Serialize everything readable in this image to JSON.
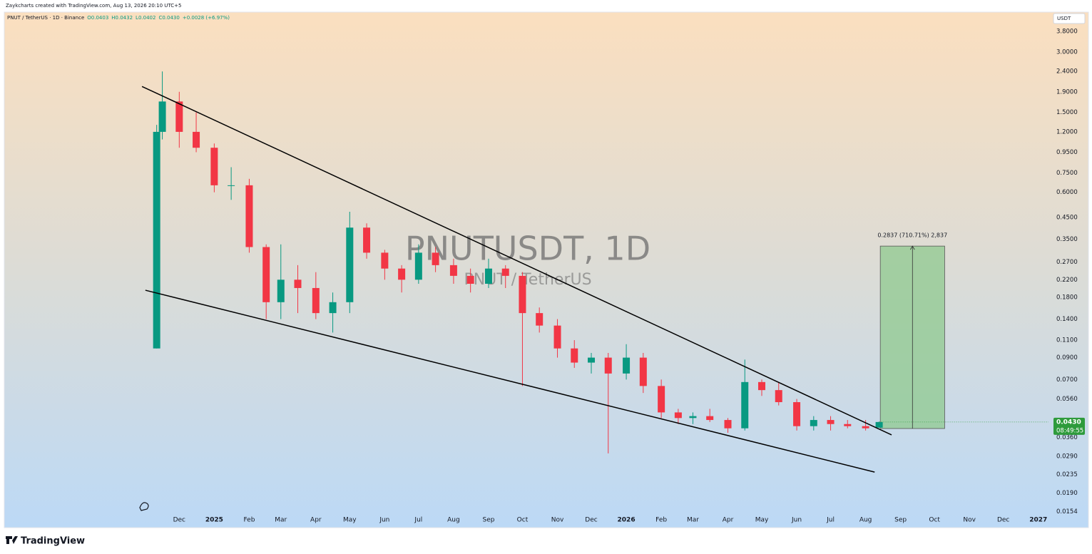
{
  "header": {
    "credit": "Zaykcharts created with TradingView.com, Aug 13, 2026 20:10 UTC+5",
    "symbol": "PNUT / TetherUS · 1D · Binance",
    "o": "O0.0403",
    "h": "H0.0432",
    "l": "L0.0402",
    "c": "C0.0430",
    "change": "+0.0028 (+6.97%)"
  },
  "watermark": {
    "title": "PNUTUSDT, 1D",
    "subtitle": "PNUT / TetherUS"
  },
  "currency": "USDT",
  "brand": "TradingView",
  "chart_data": {
    "type": "candlestick",
    "x": [
      "2024-11-11",
      "2024-11-16",
      "2024-12-01",
      "2024-12-16",
      "2025-01-01",
      "2025-01-16",
      "2025-02-01",
      "2025-02-16",
      "2025-03-01",
      "2025-03-16",
      "2025-04-01",
      "2025-04-16",
      "2025-05-01",
      "2025-05-16",
      "2025-06-01",
      "2025-06-16",
      "2025-07-01",
      "2025-07-16",
      "2025-08-01",
      "2025-08-16",
      "2025-09-01",
      "2025-09-16",
      "2025-10-01",
      "2025-10-16",
      "2025-11-01",
      "2025-11-16",
      "2025-12-01",
      "2025-12-16",
      "2026-01-01",
      "2026-01-16",
      "2026-02-01",
      "2026-02-16",
      "2026-03-01",
      "2026-03-16",
      "2026-04-01",
      "2026-04-16",
      "2026-05-01",
      "2026-05-16",
      "2026-06-01",
      "2026-06-16",
      "2026-07-01",
      "2026-07-16",
      "2026-08-01",
      "2026-08-13"
    ],
    "open": [
      0.1,
      1.2,
      1.7,
      1.2,
      1.0,
      0.65,
      0.65,
      0.32,
      0.17,
      0.22,
      0.2,
      0.15,
      0.17,
      0.4,
      0.3,
      0.25,
      0.22,
      0.3,
      0.26,
      0.23,
      0.21,
      0.25,
      0.23,
      0.15,
      0.13,
      0.1,
      0.085,
      0.09,
      0.075,
      0.09,
      0.065,
      0.048,
      0.045,
      0.046,
      0.044,
      0.04,
      0.068,
      0.062,
      0.054,
      0.041,
      0.044,
      0.042,
      0.041,
      0.0403
    ],
    "high": [
      1.3,
      2.4,
      1.9,
      1.5,
      1.05,
      0.8,
      0.7,
      0.33,
      0.33,
      0.26,
      0.24,
      0.19,
      0.48,
      0.42,
      0.31,
      0.26,
      0.33,
      0.32,
      0.28,
      0.25,
      0.28,
      0.26,
      0.24,
      0.16,
      0.14,
      0.11,
      0.095,
      0.095,
      0.105,
      0.095,
      0.07,
      0.05,
      0.048,
      0.05,
      0.045,
      0.088,
      0.07,
      0.068,
      0.056,
      0.046,
      0.046,
      0.044,
      0.044,
      0.0432
    ],
    "low": [
      0.1,
      1.1,
      1.0,
      0.95,
      0.6,
      0.55,
      0.3,
      0.14,
      0.14,
      0.15,
      0.14,
      0.12,
      0.15,
      0.28,
      0.22,
      0.19,
      0.21,
      0.24,
      0.21,
      0.19,
      0.2,
      0.2,
      0.065,
      0.12,
      0.09,
      0.08,
      0.075,
      0.03,
      0.07,
      0.06,
      0.045,
      0.042,
      0.042,
      0.043,
      0.038,
      0.039,
      0.058,
      0.052,
      0.039,
      0.039,
      0.039,
      0.04,
      0.039,
      0.0402
    ],
    "close": [
      1.2,
      1.7,
      1.2,
      1.0,
      0.65,
      0.65,
      0.32,
      0.17,
      0.22,
      0.2,
      0.15,
      0.17,
      0.4,
      0.3,
      0.25,
      0.22,
      0.3,
      0.26,
      0.23,
      0.21,
      0.25,
      0.23,
      0.15,
      0.13,
      0.1,
      0.085,
      0.09,
      0.075,
      0.09,
      0.065,
      0.048,
      0.045,
      0.046,
      0.044,
      0.04,
      0.068,
      0.062,
      0.054,
      0.041,
      0.044,
      0.042,
      0.041,
      0.04,
      0.043
    ],
    "up_color": "#089981",
    "down_color": "#f23645",
    "log_scale": true,
    "ylim": [
      0.0128,
      4.74
    ],
    "yticks": [
      {
        "value": 3.8,
        "label": "3.8000"
      },
      {
        "value": 3.0,
        "label": "3.0000"
      },
      {
        "value": 2.4,
        "label": "2.4000"
      },
      {
        "value": 1.9,
        "label": "1.9000"
      },
      {
        "value": 1.5,
        "label": "1.5000"
      },
      {
        "value": 1.2,
        "label": "1.2000"
      },
      {
        "value": 0.95,
        "label": "0.9500"
      },
      {
        "value": 0.75,
        "label": "0.7500"
      },
      {
        "value": 0.6,
        "label": "0.6000"
      },
      {
        "value": 0.45,
        "label": "0.4500"
      },
      {
        "value": 0.35,
        "label": "0.3500"
      },
      {
        "value": 0.27,
        "label": "0.2700"
      },
      {
        "value": 0.22,
        "label": "0.2200"
      },
      {
        "value": 0.18,
        "label": "0.1800"
      },
      {
        "value": 0.14,
        "label": "0.1400"
      },
      {
        "value": 0.11,
        "label": "0.1100"
      },
      {
        "value": 0.09,
        "label": "0.0900"
      },
      {
        "value": 0.07,
        "label": "0.0700"
      },
      {
        "value": 0.056,
        "label": "0.0560"
      },
      {
        "value": 0.036,
        "label": "0.0360"
      },
      {
        "value": 0.029,
        "label": "0.0290"
      },
      {
        "value": 0.0235,
        "label": "0.0235"
      },
      {
        "value": 0.019,
        "label": "0.0190"
      },
      {
        "value": 0.0154,
        "label": "0.0154"
      }
    ],
    "xlim": [
      "2024-06-29",
      "2027-01-10"
    ],
    "xticks": [
      {
        "value": "2024-12-01",
        "label": "Dec"
      },
      {
        "value": "2025-01-01",
        "label": "2025"
      },
      {
        "value": "2025-02-01",
        "label": "Feb"
      },
      {
        "value": "2025-03-01",
        "label": "Mar"
      },
      {
        "value": "2025-04-01",
        "label": "Apr"
      },
      {
        "value": "2025-05-01",
        "label": "May"
      },
      {
        "value": "2025-06-01",
        "label": "Jun"
      },
      {
        "value": "2025-07-01",
        "label": "Jul"
      },
      {
        "value": "2025-08-01",
        "label": "Aug"
      },
      {
        "value": "2025-09-01",
        "label": "Sep"
      },
      {
        "value": "2025-10-01",
        "label": "Oct"
      },
      {
        "value": "2025-11-01",
        "label": "Nov"
      },
      {
        "value": "2025-12-01",
        "label": "Dec"
      },
      {
        "value": "2026-01-01",
        "label": "2026"
      },
      {
        "value": "2026-02-01",
        "label": "Feb"
      },
      {
        "value": "2026-03-01",
        "label": "Mar"
      },
      {
        "value": "2026-04-01",
        "label": "Apr"
      },
      {
        "value": "2026-05-01",
        "label": "May"
      },
      {
        "value": "2026-06-01",
        "label": "Jun"
      },
      {
        "value": "2026-07-01",
        "label": "Jul"
      },
      {
        "value": "2026-08-01",
        "label": "Aug"
      },
      {
        "value": "2026-09-01",
        "label": "Sep"
      },
      {
        "value": "2026-10-01",
        "label": "Oct"
      },
      {
        "value": "2026-11-01",
        "label": "Nov"
      },
      {
        "value": "2026-12-01",
        "label": "Dec"
      },
      {
        "value": "2027-01-01",
        "label": "2027"
      }
    ],
    "trendlines": [
      {
        "x": [
          "2024-10-29",
          "2026-08-24"
        ],
        "y": [
          2.02,
          0.0371
        ]
      },
      {
        "x": [
          "2024-11-01",
          "2026-08-09"
        ],
        "y": [
          0.195,
          0.0242
        ]
      }
    ],
    "measure": {
      "x": [
        "2026-08-14",
        "2026-10-10"
      ],
      "y": [
        0.0399,
        0.3236
      ],
      "label": "0.2837 (710.71%) 2,837",
      "color": "#8fc98f"
    },
    "last_price": {
      "value": 0.043,
      "label": "0.0430",
      "countdown": "08:49:55",
      "color": "#2e9b3c"
    }
  }
}
